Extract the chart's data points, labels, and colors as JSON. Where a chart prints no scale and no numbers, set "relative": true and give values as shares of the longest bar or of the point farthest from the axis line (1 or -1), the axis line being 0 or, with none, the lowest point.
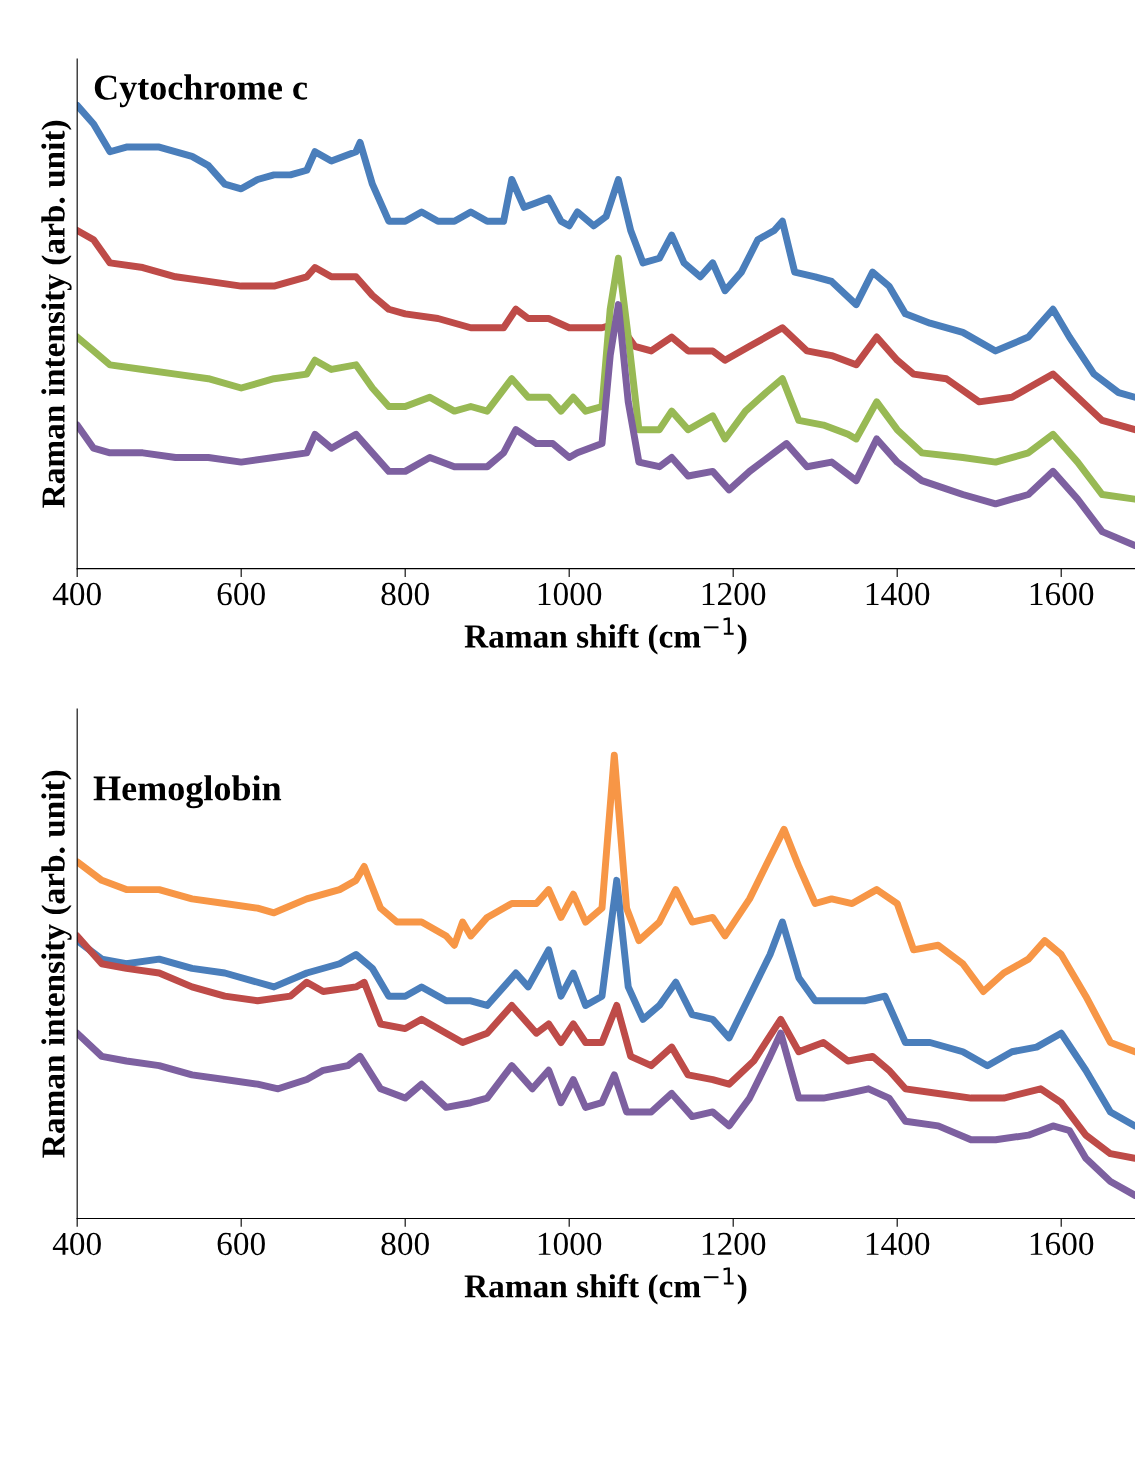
{
  "chart_data": [
    {
      "type": "line",
      "relative": true,
      "xlabel": "Raman shift (cm$^{−1}$)",
      "ylabel": "Raman intensity (arb. unit)",
      "annotations": [
        "Cytochrome c"
      ],
      "xlim": [
        400,
        1690
      ],
      "xticks": [
        400,
        600,
        800,
        1000,
        1200,
        1400,
        1600
      ],
      "grid": false,
      "legend": false,
      "marker": "none",
      "line_style": "solid",
      "series": [
        {
          "color": "#4a7ebb",
          "x": [
            400,
            420,
            440,
            460,
            500,
            540,
            560,
            580,
            600,
            620,
            640,
            660,
            680,
            690,
            710,
            740,
            745,
            760,
            780,
            800,
            820,
            840,
            860,
            880,
            900,
            920,
            930,
            945,
            960,
            975,
            990,
            1000,
            1010,
            1030,
            1045,
            1060,
            1075,
            1090,
            1110,
            1125,
            1140,
            1160,
            1175,
            1190,
            1210,
            1230,
            1250,
            1260,
            1275,
            1300,
            1320,
            1350,
            1370,
            1390,
            1410,
            1440,
            1480,
            1520,
            1560,
            1590,
            1610,
            1640,
            1670,
            1690
          ],
          "values": [
            1.0,
            0.96,
            0.9,
            0.91,
            0.91,
            0.89,
            0.87,
            0.83,
            0.82,
            0.84,
            0.85,
            0.85,
            0.86,
            0.9,
            0.88,
            0.9,
            0.92,
            0.83,
            0.75,
            0.75,
            0.77,
            0.75,
            0.75,
            0.77,
            0.75,
            0.75,
            0.84,
            0.78,
            0.79,
            0.8,
            0.75,
            0.74,
            0.77,
            0.74,
            0.76,
            0.84,
            0.73,
            0.66,
            0.67,
            0.72,
            0.66,
            0.63,
            0.66,
            0.6,
            0.64,
            0.71,
            0.73,
            0.75,
            0.64,
            0.63,
            0.62,
            0.57,
            0.64,
            0.61,
            0.55,
            0.53,
            0.51,
            0.47,
            0.5,
            0.56,
            0.5,
            0.42,
            0.38,
            0.37
          ]
        },
        {
          "color": "#be4b48",
          "x": [
            400,
            420,
            440,
            480,
            520,
            560,
            600,
            640,
            680,
            690,
            710,
            740,
            760,
            780,
            800,
            840,
            880,
            920,
            935,
            950,
            975,
            1000,
            1020,
            1040,
            1060,
            1080,
            1100,
            1125,
            1145,
            1175,
            1190,
            1220,
            1260,
            1290,
            1320,
            1350,
            1375,
            1400,
            1420,
            1460,
            1500,
            1540,
            1570,
            1590,
            1620,
            1650,
            1690
          ],
          "values": [
            0.73,
            0.71,
            0.66,
            0.65,
            0.63,
            0.62,
            0.61,
            0.61,
            0.63,
            0.65,
            0.63,
            0.63,
            0.59,
            0.56,
            0.55,
            0.54,
            0.52,
            0.52,
            0.56,
            0.54,
            0.54,
            0.52,
            0.52,
            0.52,
            0.53,
            0.48,
            0.47,
            0.5,
            0.47,
            0.47,
            0.45,
            0.48,
            0.52,
            0.47,
            0.46,
            0.44,
            0.5,
            0.45,
            0.42,
            0.41,
            0.36,
            0.37,
            0.4,
            0.42,
            0.37,
            0.32,
            0.3
          ]
        },
        {
          "color": "#98b954",
          "x": [
            400,
            420,
            440,
            480,
            520,
            560,
            600,
            640,
            680,
            690,
            710,
            740,
            760,
            780,
            800,
            830,
            860,
            880,
            900,
            930,
            950,
            975,
            990,
            1005,
            1020,
            1040,
            1050,
            1060,
            1072,
            1085,
            1110,
            1125,
            1145,
            1175,
            1190,
            1215,
            1240,
            1260,
            1280,
            1310,
            1340,
            1350,
            1375,
            1400,
            1430,
            1480,
            1520,
            1560,
            1590,
            1620,
            1650,
            1690
          ],
          "values": [
            0.5,
            0.47,
            0.44,
            0.43,
            0.42,
            0.41,
            0.39,
            0.41,
            0.42,
            0.45,
            0.43,
            0.44,
            0.39,
            0.35,
            0.35,
            0.37,
            0.34,
            0.35,
            0.34,
            0.41,
            0.37,
            0.37,
            0.34,
            0.37,
            0.34,
            0.35,
            0.56,
            0.67,
            0.5,
            0.3,
            0.3,
            0.34,
            0.3,
            0.33,
            0.28,
            0.34,
            0.38,
            0.41,
            0.32,
            0.31,
            0.29,
            0.28,
            0.36,
            0.3,
            0.25,
            0.24,
            0.23,
            0.25,
            0.29,
            0.23,
            0.16,
            0.15
          ]
        },
        {
          "color": "#7d60a0",
          "x": [
            400,
            420,
            440,
            480,
            520,
            560,
            600,
            640,
            680,
            690,
            710,
            740,
            760,
            780,
            800,
            830,
            860,
            900,
            920,
            935,
            960,
            980,
            1000,
            1010,
            1040,
            1050,
            1060,
            1072,
            1085,
            1110,
            1125,
            1145,
            1175,
            1195,
            1220,
            1250,
            1265,
            1290,
            1320,
            1350,
            1375,
            1400,
            1430,
            1480,
            1520,
            1560,
            1590,
            1620,
            1650,
            1690
          ],
          "values": [
            0.31,
            0.26,
            0.25,
            0.25,
            0.24,
            0.24,
            0.23,
            0.24,
            0.25,
            0.29,
            0.26,
            0.29,
            0.25,
            0.21,
            0.21,
            0.24,
            0.22,
            0.22,
            0.25,
            0.3,
            0.27,
            0.27,
            0.24,
            0.25,
            0.27,
            0.46,
            0.57,
            0.36,
            0.23,
            0.22,
            0.24,
            0.2,
            0.21,
            0.17,
            0.21,
            0.25,
            0.27,
            0.22,
            0.23,
            0.19,
            0.28,
            0.23,
            0.19,
            0.16,
            0.14,
            0.16,
            0.21,
            0.15,
            0.08,
            0.05
          ]
        }
      ]
    },
    {
      "type": "line",
      "relative": true,
      "xlabel": "Raman shift (cm$^{−1}$)",
      "ylabel": "Raman intensity (arb. unit)",
      "annotations": [
        "Hemoglobin"
      ],
      "xlim": [
        400,
        1690
      ],
      "xticks": [
        400,
        600,
        800,
        1000,
        1200,
        1400,
        1600
      ],
      "grid": false,
      "legend": false,
      "marker": "none",
      "line_style": "solid",
      "series": [
        {
          "color": "#f79646",
          "x": [
            400,
            430,
            460,
            500,
            540,
            580,
            620,
            640,
            680,
            720,
            740,
            750,
            770,
            790,
            820,
            850,
            860,
            870,
            880,
            900,
            930,
            960,
            975,
            990,
            1005,
            1020,
            1040,
            1055,
            1070,
            1085,
            1110,
            1130,
            1150,
            1175,
            1190,
            1220,
            1245,
            1262,
            1280,
            1300,
            1320,
            1345,
            1375,
            1400,
            1420,
            1450,
            1480,
            1505,
            1530,
            1560,
            1580,
            1600,
            1630,
            1660,
            1690
          ],
          "values": [
            0.77,
            0.73,
            0.71,
            0.71,
            0.69,
            0.68,
            0.67,
            0.66,
            0.69,
            0.71,
            0.73,
            0.76,
            0.67,
            0.64,
            0.64,
            0.61,
            0.59,
            0.64,
            0.61,
            0.65,
            0.68,
            0.68,
            0.71,
            0.65,
            0.7,
            0.64,
            0.67,
            1.0,
            0.67,
            0.6,
            0.64,
            0.71,
            0.64,
            0.65,
            0.61,
            0.69,
            0.78,
            0.84,
            0.76,
            0.68,
            0.69,
            0.68,
            0.71,
            0.68,
            0.58,
            0.59,
            0.55,
            0.49,
            0.53,
            0.56,
            0.6,
            0.57,
            0.48,
            0.38,
            0.36
          ]
        },
        {
          "color": "#4a7ebb",
          "x": [
            400,
            430,
            460,
            500,
            540,
            580,
            620,
            640,
            680,
            720,
            740,
            760,
            780,
            800,
            820,
            850,
            880,
            900,
            935,
            950,
            975,
            990,
            1005,
            1020,
            1040,
            1058,
            1072,
            1090,
            1110,
            1130,
            1150,
            1175,
            1195,
            1220,
            1245,
            1260,
            1280,
            1300,
            1330,
            1360,
            1385,
            1410,
            1440,
            1480,
            1510,
            1540,
            1570,
            1600,
            1630,
            1660,
            1690
          ],
          "values": [
            0.6,
            0.56,
            0.55,
            0.56,
            0.54,
            0.53,
            0.51,
            0.5,
            0.53,
            0.55,
            0.57,
            0.54,
            0.48,
            0.48,
            0.5,
            0.47,
            0.47,
            0.46,
            0.53,
            0.5,
            0.58,
            0.48,
            0.53,
            0.46,
            0.48,
            0.73,
            0.5,
            0.43,
            0.46,
            0.51,
            0.44,
            0.43,
            0.39,
            0.48,
            0.57,
            0.64,
            0.52,
            0.47,
            0.47,
            0.47,
            0.48,
            0.38,
            0.38,
            0.36,
            0.33,
            0.36,
            0.37,
            0.4,
            0.32,
            0.23,
            0.2
          ]
        },
        {
          "color": "#be4b48",
          "x": [
            400,
            430,
            460,
            500,
            540,
            580,
            620,
            660,
            680,
            700,
            740,
            750,
            770,
            800,
            820,
            850,
            870,
            900,
            930,
            960,
            975,
            990,
            1005,
            1020,
            1040,
            1058,
            1075,
            1100,
            1125,
            1145,
            1175,
            1195,
            1225,
            1258,
            1280,
            1310,
            1340,
            1370,
            1390,
            1410,
            1450,
            1490,
            1530,
            1575,
            1600,
            1630,
            1660,
            1690
          ],
          "values": [
            0.61,
            0.55,
            0.54,
            0.53,
            0.5,
            0.48,
            0.47,
            0.48,
            0.51,
            0.49,
            0.5,
            0.51,
            0.42,
            0.41,
            0.43,
            0.4,
            0.38,
            0.4,
            0.46,
            0.4,
            0.42,
            0.38,
            0.42,
            0.38,
            0.38,
            0.46,
            0.35,
            0.33,
            0.37,
            0.31,
            0.3,
            0.29,
            0.34,
            0.43,
            0.36,
            0.38,
            0.34,
            0.35,
            0.32,
            0.28,
            0.27,
            0.26,
            0.26,
            0.28,
            0.25,
            0.18,
            0.14,
            0.13
          ]
        },
        {
          "color": "#7d60a0",
          "x": [
            400,
            430,
            460,
            500,
            540,
            580,
            620,
            645,
            680,
            700,
            730,
            745,
            770,
            800,
            820,
            850,
            880,
            900,
            930,
            955,
            975,
            990,
            1005,
            1020,
            1040,
            1055,
            1070,
            1100,
            1125,
            1150,
            1175,
            1195,
            1220,
            1245,
            1258,
            1280,
            1310,
            1340,
            1365,
            1390,
            1410,
            1450,
            1490,
            1520,
            1560,
            1590,
            1610,
            1630,
            1660,
            1690
          ],
          "values": [
            0.4,
            0.35,
            0.34,
            0.33,
            0.31,
            0.3,
            0.29,
            0.28,
            0.3,
            0.32,
            0.33,
            0.35,
            0.28,
            0.26,
            0.29,
            0.24,
            0.25,
            0.26,
            0.33,
            0.28,
            0.32,
            0.25,
            0.3,
            0.24,
            0.25,
            0.31,
            0.23,
            0.23,
            0.27,
            0.22,
            0.23,
            0.2,
            0.26,
            0.35,
            0.4,
            0.26,
            0.26,
            0.27,
            0.28,
            0.26,
            0.21,
            0.2,
            0.17,
            0.17,
            0.18,
            0.2,
            0.19,
            0.13,
            0.08,
            0.05
          ]
        }
      ]
    }
  ]
}
